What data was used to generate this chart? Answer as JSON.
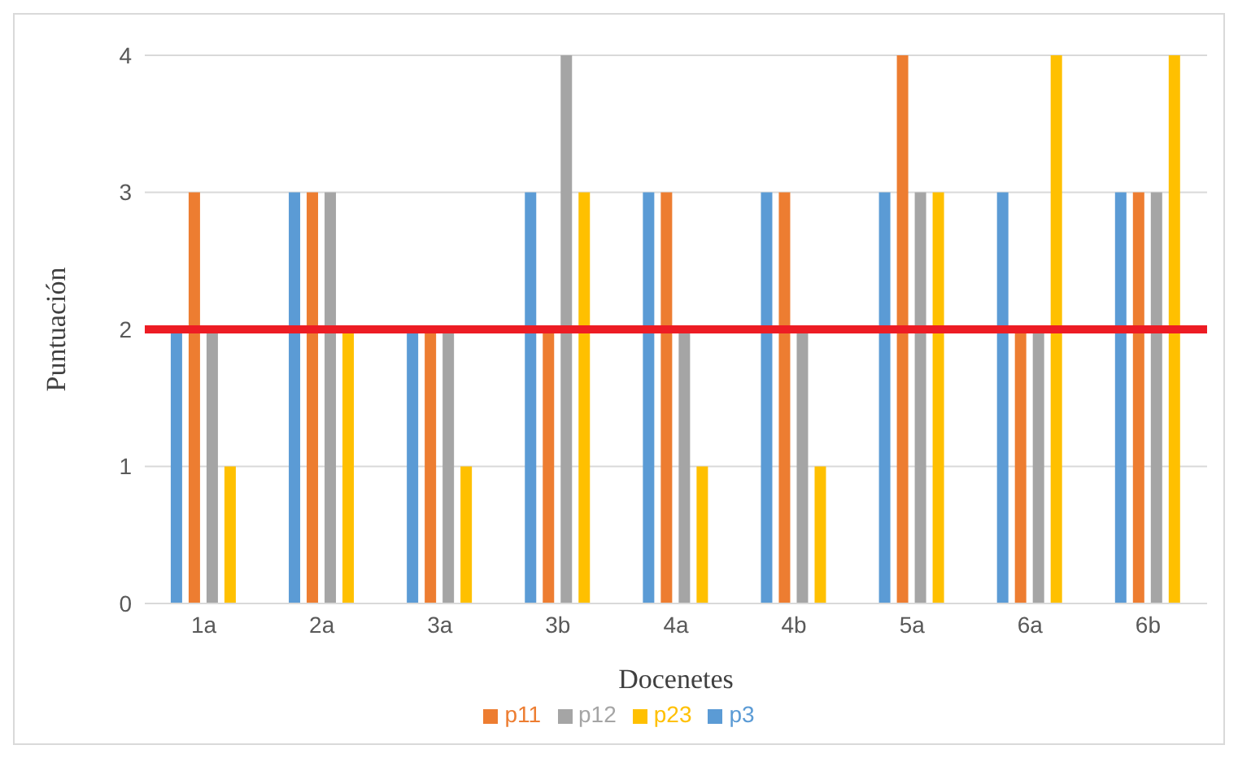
{
  "chart_data": {
    "type": "bar",
    "xlabel": "Docenetes",
    "ylabel": "Puntuación",
    "categories": [
      "1a",
      "2a",
      "3a",
      "3b",
      "4a",
      "4b",
      "5a",
      "6a",
      "6b"
    ],
    "series": [
      {
        "name": "p3",
        "color": "#5b9bd5",
        "values": [
          2,
          3,
          2,
          3,
          3,
          3,
          3,
          3,
          3
        ]
      },
      {
        "name": "p11",
        "color": "#ed7d31",
        "values": [
          3,
          3,
          2,
          2,
          3,
          3,
          4,
          2,
          3
        ]
      },
      {
        "name": "p12",
        "color": "#a5a5a5",
        "values": [
          2,
          3,
          2,
          4,
          2,
          2,
          3,
          2,
          3
        ]
      },
      {
        "name": "p23",
        "color": "#ffc000",
        "values": [
          1,
          2,
          1,
          3,
          1,
          1,
          3,
          4,
          4
        ]
      }
    ],
    "ylim": [
      0,
      4
    ],
    "yticks": [
      0,
      1,
      2,
      3,
      4
    ],
    "grid": "y",
    "legend": "bottom",
    "ref_lines": [
      {
        "axis": "y",
        "value": 2,
        "color": "#ed1c24"
      }
    ]
  }
}
